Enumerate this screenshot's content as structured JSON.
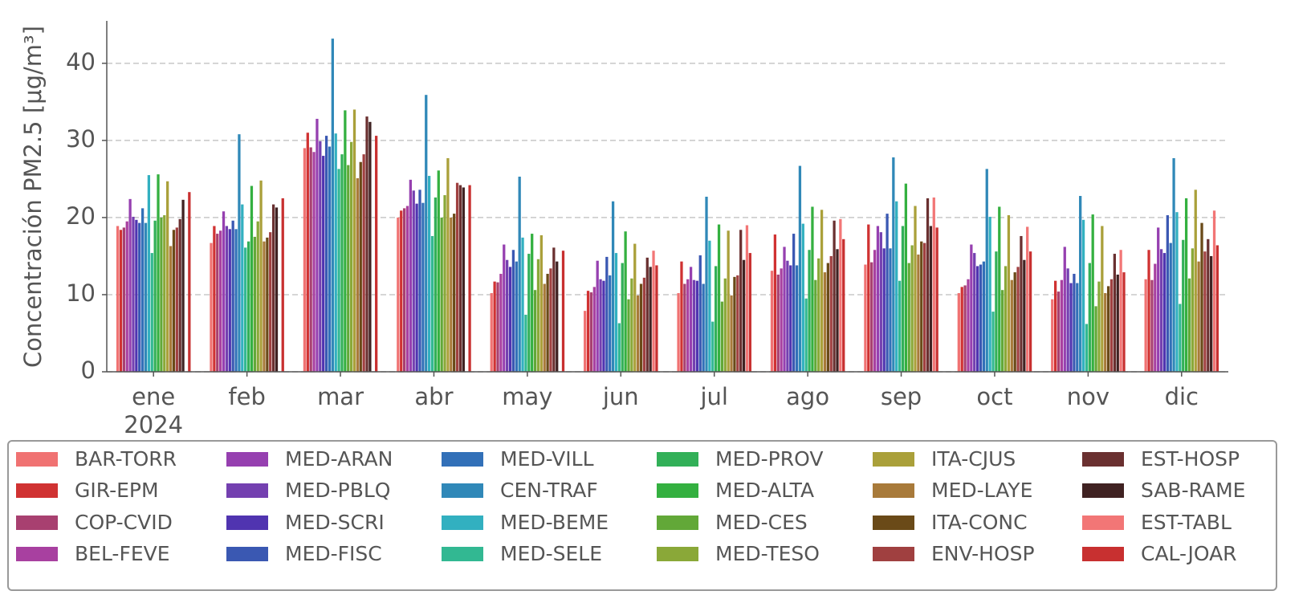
{
  "chart_data": {
    "type": "bar",
    "ylabel": "Concentración PM2.5 [μg/m³]",
    "categories": [
      "ene",
      "feb",
      "mar",
      "abr",
      "may",
      "jun",
      "jul",
      "ago",
      "sep",
      "oct",
      "nov",
      "dic"
    ],
    "year_label": "2024",
    "ylim": [
      0,
      45.5
    ],
    "yticks": [
      0,
      10,
      20,
      30,
      40
    ],
    "grid": true,
    "legend_position": "bottom",
    "series": [
      {
        "name": "BAR-TORR",
        "color": "#f07272",
        "values": [
          18.9,
          16.7,
          29.0,
          20.0,
          10.2,
          7.9,
          10.2,
          13.1,
          13.9,
          10.2,
          9.4,
          12.0
        ]
      },
      {
        "name": "GIR-EPM",
        "color": "#d03232",
        "values": [
          18.4,
          18.9,
          31.0,
          20.9,
          11.7,
          10.5,
          14.3,
          17.8,
          19.1,
          11.0,
          11.8,
          15.8
        ]
      },
      {
        "name": "COP-CVID",
        "color": "#a84070",
        "values": [
          18.7,
          17.9,
          29.1,
          21.2,
          11.6,
          10.3,
          11.4,
          12.6,
          14.2,
          11.2,
          10.4,
          11.9
        ]
      },
      {
        "name": "BEL-FEVE",
        "color": "#a840a0",
        "values": [
          19.5,
          18.3,
          28.5,
          21.5,
          12.7,
          11.0,
          12.0,
          13.4,
          15.8,
          12.0,
          11.9,
          14.0
        ]
      },
      {
        "name": "MED-ARAN",
        "color": "#9640b0",
        "values": [
          22.4,
          20.8,
          32.8,
          24.9,
          16.5,
          14.4,
          13.6,
          16.2,
          18.9,
          16.5,
          16.2,
          18.7
        ]
      },
      {
        "name": "MED-PBLQ",
        "color": "#7440b0",
        "values": [
          20.1,
          18.9,
          29.9,
          23.5,
          14.5,
          12.0,
          11.9,
          14.4,
          18.1,
          15.4,
          13.4,
          15.9
        ]
      },
      {
        "name": "MED-SCRI",
        "color": "#5034b0",
        "values": [
          19.7,
          18.5,
          28.0,
          21.8,
          13.6,
          11.8,
          11.8,
          13.8,
          16.0,
          13.7,
          11.5,
          15.4
        ]
      },
      {
        "name": "MED-FISC",
        "color": "#3a58b2",
        "values": [
          19.3,
          19.6,
          30.6,
          23.6,
          15.8,
          14.9,
          15.1,
          17.9,
          20.5,
          13.9,
          12.7,
          20.3
        ]
      },
      {
        "name": "MED-VILL",
        "color": "#3270b8",
        "values": [
          21.2,
          18.5,
          29.2,
          21.9,
          14.3,
          12.5,
          11.4,
          13.8,
          16.0,
          14.3,
          11.5,
          16.7
        ]
      },
      {
        "name": "CEN-TRAF",
        "color": "#3088b8",
        "values": [
          19.3,
          30.8,
          43.2,
          35.9,
          25.3,
          22.1,
          22.7,
          26.7,
          27.8,
          26.3,
          22.8,
          27.7
        ]
      },
      {
        "name": "MED-BEME",
        "color": "#32b0c0",
        "values": [
          25.5,
          21.7,
          30.9,
          25.4,
          17.4,
          15.4,
          17.0,
          19.2,
          22.1,
          20.1,
          19.7,
          20.7
        ]
      },
      {
        "name": "MED-SELE",
        "color": "#32b892",
        "values": [
          15.4,
          16.1,
          26.3,
          17.6,
          7.4,
          6.3,
          6.5,
          9.5,
          11.8,
          7.8,
          6.2,
          8.8
        ]
      },
      {
        "name": "MED-PROV",
        "color": "#32b058",
        "values": [
          19.6,
          16.9,
          28.2,
          22.6,
          15.3,
          14.1,
          13.7,
          15.8,
          18.9,
          15.6,
          14.1,
          17.1
        ]
      },
      {
        "name": "MED-ALTA",
        "color": "#34b040",
        "values": [
          25.6,
          24.1,
          33.9,
          26.1,
          17.9,
          18.2,
          19.1,
          21.4,
          24.4,
          21.4,
          20.4,
          22.5
        ]
      },
      {
        "name": "MED-CES",
        "color": "#62a838",
        "values": [
          20.0,
          17.5,
          26.8,
          20.0,
          10.6,
          9.4,
          9.1,
          11.9,
          14.1,
          10.6,
          8.5,
          12.1
        ]
      },
      {
        "name": "MED-TESO",
        "color": "#8aa838",
        "values": [
          20.3,
          19.5,
          29.8,
          22.9,
          14.6,
          12.1,
          12.1,
          14.7,
          16.4,
          13.7,
          11.7,
          16.0
        ]
      },
      {
        "name": "ITA-CJUS",
        "color": "#aaa03a",
        "values": [
          24.7,
          24.8,
          34.0,
          27.7,
          17.7,
          16.6,
          18.3,
          21.0,
          21.5,
          20.3,
          18.9,
          23.6
        ]
      },
      {
        "name": "MED-LAYE",
        "color": "#a87a3a",
        "values": [
          16.3,
          16.9,
          25.1,
          20.0,
          11.4,
          9.9,
          9.9,
          12.9,
          15.2,
          11.9,
          10.2,
          14.3
        ]
      },
      {
        "name": "ITA-CONC",
        "color": "#6a4a18",
        "values": [
          18.4,
          17.4,
          27.2,
          20.5,
          12.7,
          11.4,
          12.3,
          14.1,
          16.9,
          12.9,
          11.1,
          19.3
        ]
      },
      {
        "name": "ENV-HOSP",
        "color": "#a04040",
        "values": [
          18.7,
          18.1,
          28.2,
          24.5,
          13.4,
          12.2,
          12.5,
          15.0,
          16.7,
          13.6,
          12.0,
          15.6
        ]
      },
      {
        "name": "EST-HOSP",
        "color": "#6a3030",
        "values": [
          19.8,
          21.7,
          33.1,
          24.2,
          16.1,
          14.8,
          18.4,
          19.6,
          22.5,
          17.6,
          15.3,
          17.2
        ]
      },
      {
        "name": "SAB-RAME",
        "color": "#402222",
        "values": [
          22.3,
          21.3,
          32.4,
          23.9,
          14.3,
          13.6,
          14.5,
          15.9,
          18.9,
          14.5,
          12.6,
          15.0
        ]
      },
      {
        "name": "EST-TABL",
        "color": "#f27676",
        "values": [
          null,
          null,
          null,
          null,
          null,
          15.7,
          19.0,
          19.8,
          22.6,
          18.8,
          15.8,
          20.9
        ]
      },
      {
        "name": "CAL-JOAR",
        "color": "#c83030",
        "values": [
          23.3,
          22.5,
          30.6,
          24.2,
          15.7,
          13.8,
          15.4,
          17.2,
          18.7,
          15.6,
          12.9,
          16.4
        ]
      }
    ]
  }
}
